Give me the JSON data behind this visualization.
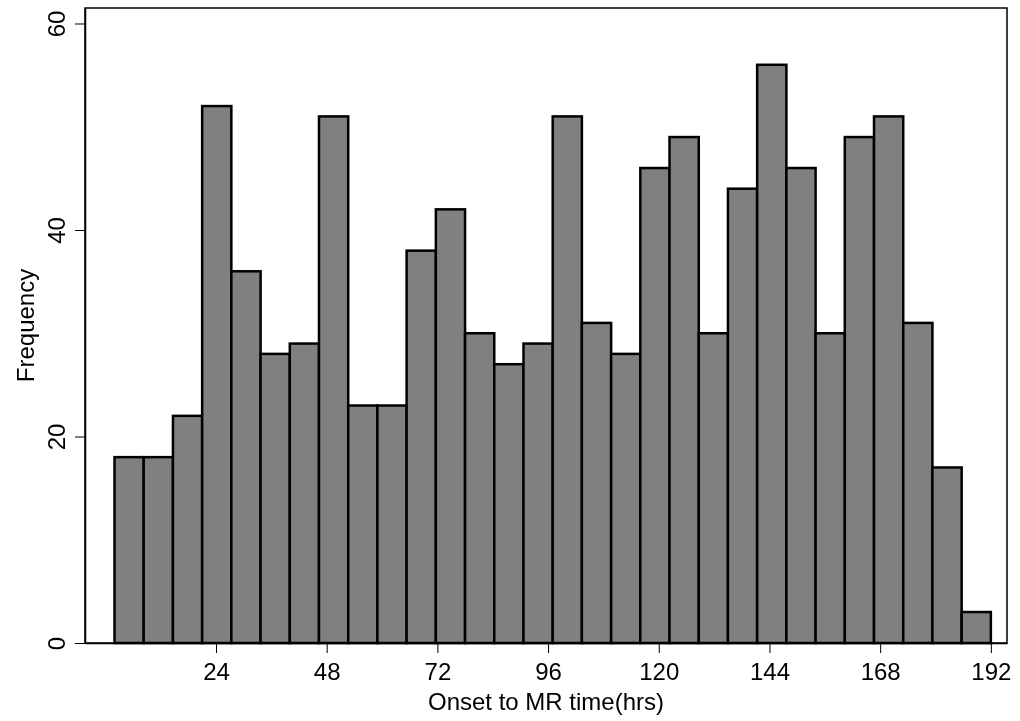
{
  "chart_data": {
    "type": "histogram",
    "xlabel": "Onset to MR time(hrs)",
    "ylabel": "Frequency",
    "color": "#808080",
    "bins": [
      2,
      8.33,
      14.67,
      21,
      27.33,
      33.67,
      40,
      46.33,
      52.67,
      59,
      65.33,
      71.67,
      78,
      84.33,
      90.67,
      97,
      103.33,
      109.67,
      116,
      122.33,
      128.67,
      135,
      141.33,
      147.67,
      154,
      160.33,
      166.67,
      173,
      179.33,
      185.67,
      192
    ],
    "values": [
      18,
      18,
      22,
      52,
      36,
      28,
      29,
      51,
      23,
      23,
      38,
      42,
      30,
      27,
      29,
      51,
      31,
      28,
      46,
      49,
      30,
      44,
      56,
      46,
      30,
      49,
      51,
      31,
      17,
      3
    ],
    "xlim": [
      -4.4,
      195.5
    ],
    "xticks": [
      24,
      48,
      72,
      96,
      120,
      144,
      168,
      192
    ],
    "ylim": [
      0,
      61.5
    ],
    "yticks": [
      0,
      20,
      40,
      60
    ],
    "grid": false
  }
}
